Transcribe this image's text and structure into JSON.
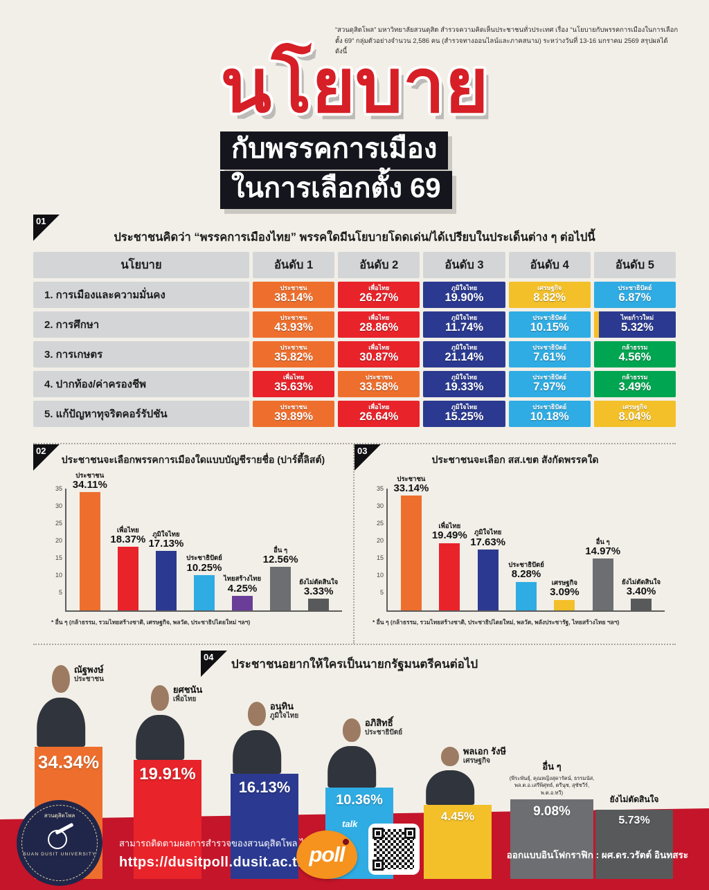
{
  "header": {
    "source_line1": "“สวนดุสิตโพล” มหาวิทยาลัยสวนดุสิต สำรวจความคิดเห็นประชาชนทั่วประเทศ เรื่อง “นโยบายกับพรรคการเมืองในการเลือกตั้ง 69”",
    "source_line2": "กลุ่มตัวอย่างจำนวน 2,586 คน (สำรวจทางออนไลน์และภาคสนาม) ระหว่างวันที่ 13-16 มกราคม 2569 สรุปผลได้ ดังนี้",
    "title_main": "นโยบาย",
    "title_sub1": "กับพรรคการเมือง",
    "title_sub2": "ในการเลือกตั้ง 69"
  },
  "colors": {
    "title_red": "#d61f26",
    "band_red": "#c5152a",
    "prachachon_orange": "#ee6f2d",
    "pheuthai_red": "#e8232a",
    "bhumjaithai_navy": "#2b3a90",
    "democrat_blue": "#2face3",
    "setthakij_yellow": "#f3c029",
    "klatham_green": "#00a551",
    "thaisangthai_purple": "#6a3d98",
    "others_gray": "#6d6e71",
    "undecided_gray": "#58595b"
  },
  "chart_data": [
    {
      "id": "policy-advantage-table",
      "type": "table",
      "number": "01",
      "title": "ประชาชนคิดว่า “พรรคการเมืองไทย” พรรคใดมีนโยบายโดดเด่น/ได้เปรียบในประเด็นต่าง ๆ ต่อไปนี้",
      "columns": [
        "นโยบาย",
        "อันดับ 1",
        "อันดับ 2",
        "อันดับ 3",
        "อันดับ 4",
        "อันดับ 5"
      ],
      "rows": [
        {
          "policy": "1. การเมืองและความมั่นคง",
          "cells": [
            {
              "party": "ประชาชน",
              "value": 38.14,
              "color": "#ee6f2d"
            },
            {
              "party": "เพื่อไทย",
              "value": 26.27,
              "color": "#e8232a"
            },
            {
              "party": "ภูมิใจไทย",
              "value": 19.9,
              "color": "#2b3a90"
            },
            {
              "party": "เศรษฐกิจ",
              "value": 8.82,
              "color": "#f3c029"
            },
            {
              "party": "ประชาธิปัตย์",
              "value": 6.87,
              "color": "#2face3"
            }
          ]
        },
        {
          "policy": "2. การศึกษา",
          "cells": [
            {
              "party": "ประชาชน",
              "value": 43.93,
              "color": "#ee6f2d"
            },
            {
              "party": "เพื่อไทย",
              "value": 28.86,
              "color": "#e8232a"
            },
            {
              "party": "ภูมิใจไทย",
              "value": 11.74,
              "color": "#2b3a90"
            },
            {
              "party": "ประชาธิปัตย์",
              "value": 10.15,
              "color": "#2face3"
            },
            {
              "party": "ไทยก้าวใหม่",
              "value": 5.32,
              "color": "#2b3a90",
              "accent": "#f3c029"
            }
          ]
        },
        {
          "policy": "3. การเกษตร",
          "cells": [
            {
              "party": "ประชาชน",
              "value": 35.82,
              "color": "#ee6f2d"
            },
            {
              "party": "เพื่อไทย",
              "value": 30.87,
              "color": "#e8232a"
            },
            {
              "party": "ภูมิใจไทย",
              "value": 21.14,
              "color": "#2b3a90"
            },
            {
              "party": "ประชาธิปัตย์",
              "value": 7.61,
              "color": "#2face3"
            },
            {
              "party": "กล้าธรรม",
              "value": 4.56,
              "color": "#00a551"
            }
          ]
        },
        {
          "policy": "4. ปากท้อง/ค่าครองชีพ",
          "cells": [
            {
              "party": "เพื่อไทย",
              "value": 35.63,
              "color": "#e8232a"
            },
            {
              "party": "ประชาชน",
              "value": 33.58,
              "color": "#ee6f2d"
            },
            {
              "party": "ภูมิใจไทย",
              "value": 19.33,
              "color": "#2b3a90"
            },
            {
              "party": "ประชาธิปัตย์",
              "value": 7.97,
              "color": "#2face3"
            },
            {
              "party": "กล้าธรรม",
              "value": 3.49,
              "color": "#00a551"
            }
          ]
        },
        {
          "policy": "5. แก้ปัญหาทุจริตคอร์รัปชัน",
          "cells": [
            {
              "party": "ประชาชน",
              "value": 39.89,
              "color": "#ee6f2d"
            },
            {
              "party": "เพื่อไทย",
              "value": 26.64,
              "color": "#e8232a"
            },
            {
              "party": "ภูมิใจไทย",
              "value": 15.25,
              "color": "#2b3a90"
            },
            {
              "party": "ประชาธิปัตย์",
              "value": 10.18,
              "color": "#2face3"
            },
            {
              "party": "เศรษฐกิจ",
              "value": 8.04,
              "color": "#f3c029"
            }
          ]
        }
      ]
    },
    {
      "id": "party-list-vote",
      "type": "bar",
      "number": "02",
      "title": "ประชาชนจะเลือกพรรคการเมืองใดแบบบัญชีรายชื่อ (ปาร์ตี้ลิสต์)",
      "categories": [
        "ประชาชน",
        "เพื่อไทย",
        "ภูมิใจไทย",
        "ประชาธิปัตย์",
        "ไทยสร้างไทย",
        "อื่น ๆ",
        "ยังไม่ตัดสินใจ"
      ],
      "values": [
        34.11,
        18.37,
        17.13,
        10.25,
        4.25,
        12.56,
        3.33
      ],
      "colors": [
        "#ee6f2d",
        "#e8232a",
        "#2b3a90",
        "#2face3",
        "#6a3d98",
        "#6d6e71",
        "#58595b"
      ],
      "ylim": [
        0,
        35
      ],
      "yticks": [
        5,
        10,
        15,
        20,
        25,
        30,
        35
      ],
      "footnote": "* อื่น ๆ  (กล้าธรรม, รวมไทยสร้างชาติ, เศรษฐกิจ, พลวัต, ประชาธิปไตยใหม่ ฯลฯ)"
    },
    {
      "id": "constituency-mp-vote",
      "type": "bar",
      "number": "03",
      "title": "ประชาชนจะเลือก สส.เขต สังกัดพรรคใด",
      "categories": [
        "ประชาชน",
        "เพื่อไทย",
        "ภูมิใจไทย",
        "ประชาธิปัตย์",
        "เศรษฐกิจ",
        "อื่น ๆ",
        "ยังไม่ตัดสินใจ"
      ],
      "values": [
        33.14,
        19.49,
        17.63,
        8.28,
        3.09,
        14.97,
        3.4
      ],
      "colors": [
        "#ee6f2d",
        "#e8232a",
        "#2b3a90",
        "#2face3",
        "#f3c029",
        "#6d6e71",
        "#58595b"
      ],
      "ylim": [
        0,
        35
      ],
      "yticks": [
        5,
        10,
        15,
        20,
        25,
        30,
        35
      ],
      "footnote": "* อื่น ๆ  (กล้าธรรม, รวมไทยสร้างชาติ, ประชาธิปไตยใหม่, พลวัต, พลังประชารัฐ, ไทยสร้างไทย ฯลฯ)"
    },
    {
      "id": "next-pm",
      "type": "bar",
      "number": "04",
      "title": "ประชาชนอยากให้ใครเป็นนายกรัฐมนตรีคนต่อไป",
      "candidates": [
        {
          "name": "ณัฐพงษ์",
          "party": "ประชาชน",
          "value": 34.34,
          "color": "#ee6f2d"
        },
        {
          "name": "ยศชนัน",
          "party": "เพื่อไทย",
          "value": 19.91,
          "color": "#e8232a"
        },
        {
          "name": "อนุทิน",
          "party": "ภูมิใจไทย",
          "value": 16.13,
          "color": "#2b3a90"
        },
        {
          "name": "อภิสิทธิ์",
          "party": "ประชาธิปัตย์",
          "value": 10.36,
          "color": "#2face3"
        },
        {
          "name": "พลเอก รังษี",
          "party": "เศรษฐกิจ",
          "value": 4.45,
          "color": "#f3c029"
        },
        {
          "name": "อื่น ๆ",
          "party": "(พีระพันธุ์, คุณหญิงสุดารัตน์, ธรรมนัส, พล.ต.อ.เสรีพิศุทธ์, ตรีนุช, สุชัชวีร์, พ.ต.อ.ทวี)",
          "value": 9.08,
          "color": "#6d6e71"
        },
        {
          "name": "ยังไม่ตัดสินใจ",
          "party": "",
          "value": 5.73,
          "color": "#58595b"
        }
      ]
    }
  ],
  "footer": {
    "follow_text": "สามารถติดตามผลการสำรวจของสวนดุสิตโพล ได้ที่",
    "url": "https://dusitpoll.dusit.ac.th",
    "poll_logo": "poll",
    "talk_label": "talk",
    "credit": "ออกแบบอินโฟกราฟิก : ผศ.ดร.วรัตต์ อินทสระ",
    "university_top": "สวนดุสิตโพล",
    "university_bottom": "SUAN DUSIT UNIVERSITY"
  }
}
